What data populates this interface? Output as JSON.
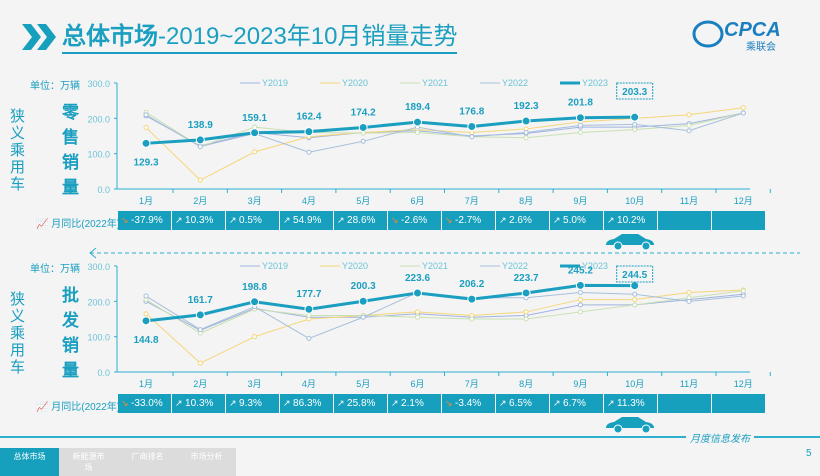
{
  "title": {
    "bold": "总体市场",
    "rest": "-2019~2023年10月销量走势"
  },
  "logo": {
    "text": "CPCA",
    "sub": "乘联会"
  },
  "unit_label": "单位：万辆",
  "category_label": "狭义乘用车",
  "yoy_label": "月同比(2022年)",
  "footer": {
    "tabs": [
      "总体市场",
      "新能源市场",
      "厂商排名",
      "市场分析"
    ],
    "slogan": "月度信息发布",
    "page": "5"
  },
  "colors": {
    "Y2019": "#9fb3e0",
    "Y2020": "#f5d67a",
    "Y2021": "#c9e0b3",
    "Y2022": "#a7bfdc",
    "Y2023": "#1a9fc0"
  },
  "chart_data": [
    {
      "type": "line",
      "subtitle": "零售销量",
      "categories": [
        "1月",
        "2月",
        "3月",
        "4月",
        "5月",
        "6月",
        "7月",
        "8月",
        "9月",
        "10月",
        "11月",
        "12月"
      ],
      "yticks": [
        "0.0",
        "100.0",
        "200.0",
        "300.0"
      ],
      "ylim": [
        0,
        300
      ],
      "legend": "top",
      "series": [
        {
          "name": "Y2019",
          "values": [
            207,
            122,
            160,
            145,
            160,
            165,
            150,
            157,
            175,
            175,
            185,
            215
          ]
        },
        {
          "name": "Y2020",
          "values": [
            174,
            25,
            105,
            148,
            160,
            168,
            160,
            170,
            190,
            200,
            210,
            230
          ]
        },
        {
          "name": "Y2021",
          "values": [
            217,
            120,
            175,
            160,
            158,
            160,
            148,
            145,
            160,
            168,
            180,
            215
          ]
        },
        {
          "name": "Y2022",
          "values": [
            210,
            120,
            157,
            104,
            135,
            175,
            148,
            160,
            180,
            183,
            165,
            215
          ]
        },
        {
          "name": "Y2023",
          "values": [
            129.3,
            138.9,
            159.1,
            162.4,
            174.2,
            189.4,
            176.8,
            192.3,
            201.8,
            203.3
          ]
        }
      ],
      "labels": [
        "129.3",
        "138.9",
        "159.1",
        "162.4",
        "174.2",
        "189.4",
        "176.8",
        "192.3",
        "201.8",
        "203.3"
      ],
      "yoy": [
        "-37.9%",
        "10.3%",
        "0.5%",
        "54.9%",
        "28.6%",
        "-2.6%",
        "-2.7%",
        "2.6%",
        "5.0%",
        "10.2%",
        "",
        ""
      ]
    },
    {
      "type": "line",
      "subtitle": "批发销量",
      "categories": [
        "1月",
        "2月",
        "3月",
        "4月",
        "5月",
        "6月",
        "7月",
        "8月",
        "9月",
        "10月",
        "11月",
        "12月"
      ],
      "yticks": [
        "0.0",
        "100.0",
        "200.0",
        "300.0"
      ],
      "ylim": [
        0,
        300
      ],
      "legend": "top",
      "series": [
        {
          "name": "Y2019",
          "values": [
            200,
            118,
            180,
            155,
            155,
            165,
            155,
            160,
            190,
            190,
            205,
            220
          ]
        },
        {
          "name": "Y2020",
          "values": [
            165,
            25,
            100,
            150,
            160,
            170,
            160,
            170,
            205,
            205,
            225,
            232
          ]
        },
        {
          "name": "Y2021",
          "values": [
            205,
            110,
            178,
            160,
            160,
            155,
            150,
            150,
            170,
            190,
            210,
            230
          ]
        },
        {
          "name": "Y2022",
          "values": [
            215,
            120,
            185,
            95,
            155,
            225,
            210,
            210,
            225,
            220,
            200,
            215
          ]
        },
        {
          "name": "Y2023",
          "values": [
            144.8,
            161.7,
            198.8,
            177.7,
            200.3,
            223.6,
            206.2,
            223.7,
            245.2,
            244.5
          ]
        }
      ],
      "labels": [
        "144.8",
        "161.7",
        "198.8",
        "177.7",
        "200.3",
        "223.6",
        "206.2",
        "223.7",
        "245.2",
        "244.5"
      ],
      "yoy": [
        "-33.0%",
        "10.3%",
        "9.3%",
        "86.3%",
        "25.8%",
        "2.1%",
        "-3.4%",
        "6.5%",
        "6.7%",
        "11.3%",
        "",
        ""
      ]
    }
  ]
}
